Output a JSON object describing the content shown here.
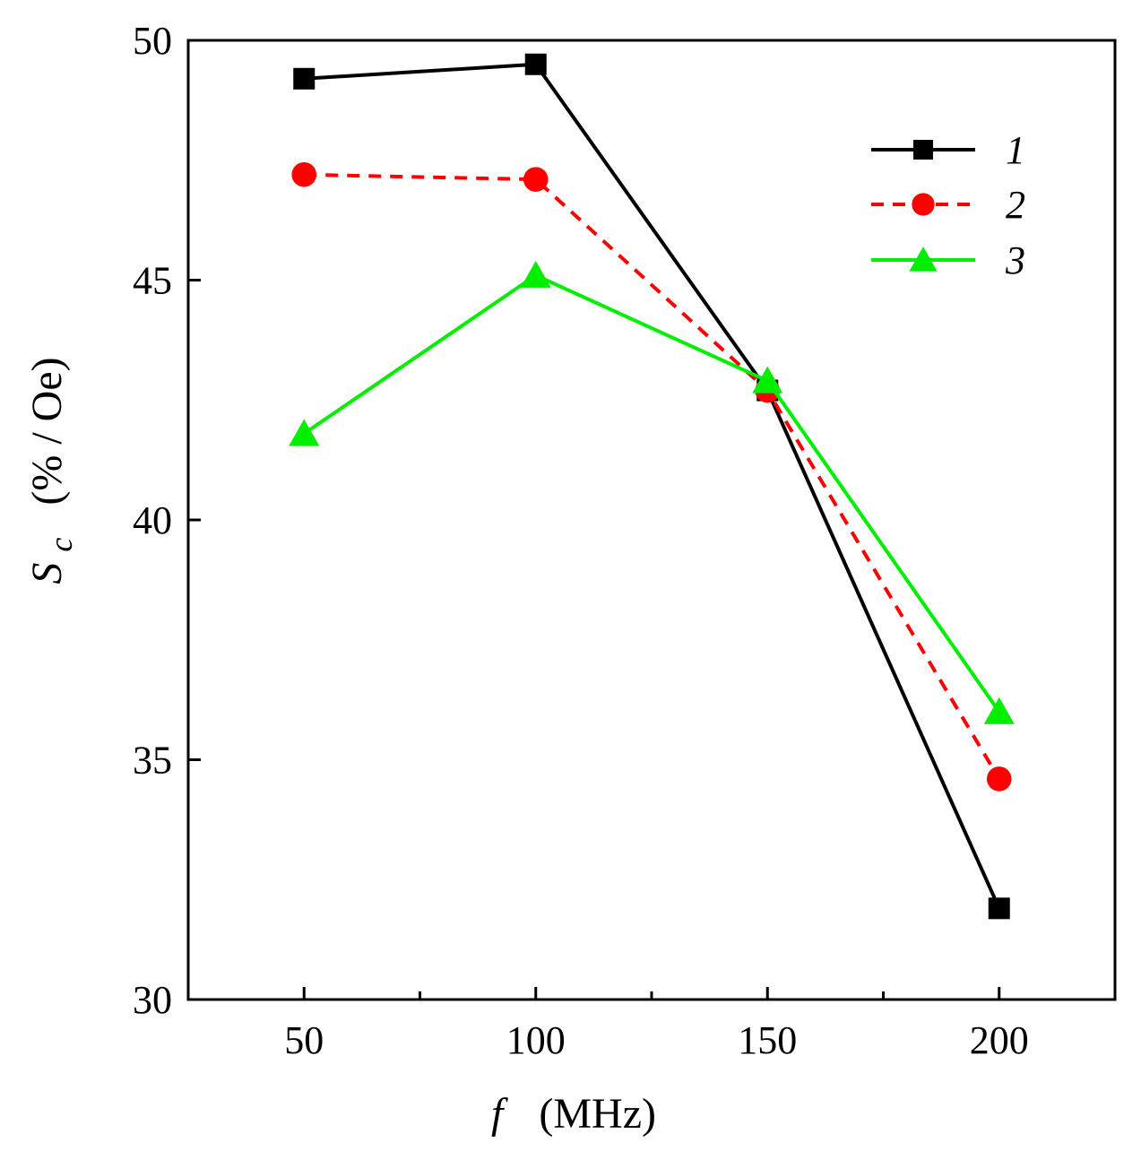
{
  "chart_data": {
    "type": "line",
    "x": [
      50,
      100,
      150,
      200
    ],
    "xlim": [
      25,
      225
    ],
    "ylim": [
      30,
      50
    ],
    "x_ticks": [
      "50",
      "100",
      "150",
      "200"
    ],
    "y_ticks": [
      "30",
      "35",
      "40",
      "45",
      "50"
    ],
    "xlabel_var": "f",
    "xlabel_unit": "(MHz)",
    "ylabel_var": "S",
    "ylabel_sub": "c",
    "ylabel_unit": "(% / Oe)",
    "legend_position": "top-right",
    "series": [
      {
        "name": "1",
        "values": [
          49.2,
          49.5,
          42.7,
          31.9
        ],
        "color": "#000000",
        "marker": "square",
        "dash": "solid"
      },
      {
        "name": "2",
        "values": [
          47.2,
          47.1,
          42.7,
          34.6
        ],
        "color": "#ff0000",
        "marker": "circle",
        "dash": "dashed"
      },
      {
        "name": "3",
        "values": [
          41.8,
          45.1,
          42.9,
          36.0
        ],
        "color": "#00ee00",
        "marker": "triangle",
        "dash": "solid"
      }
    ]
  }
}
